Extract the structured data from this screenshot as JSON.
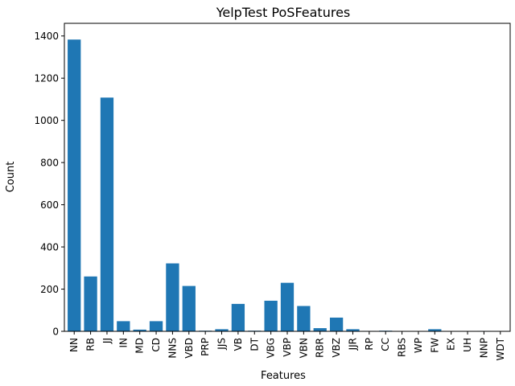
{
  "chart_data": {
    "type": "bar",
    "title": "YelpTest PoSFeatures",
    "xlabel": "Features",
    "ylabel": "Count",
    "ylim": [
      0,
      1460
    ],
    "yticks": [
      0,
      200,
      400,
      600,
      800,
      1000,
      1200,
      1400
    ],
    "grid": false,
    "bar_color": "#1f77b4",
    "categories": [
      "NN",
      "RB",
      "JJ",
      "IN",
      "MD",
      "CD",
      "NNS",
      "VBD",
      "PRP",
      "JJS",
      "VB",
      "DT",
      "VBG",
      "VBP",
      "VBN",
      "RBR",
      "VBZ",
      "JJR",
      "RP",
      "CC",
      "RBS",
      "WP",
      "FW",
      "EX",
      "UH",
      "NNP",
      "WDT"
    ],
    "values": [
      1383,
      260,
      1108,
      48,
      8,
      48,
      322,
      215,
      3,
      10,
      130,
      3,
      145,
      230,
      120,
      15,
      65,
      10,
      2,
      3,
      0,
      0,
      10,
      0,
      0,
      2,
      0
    ]
  }
}
